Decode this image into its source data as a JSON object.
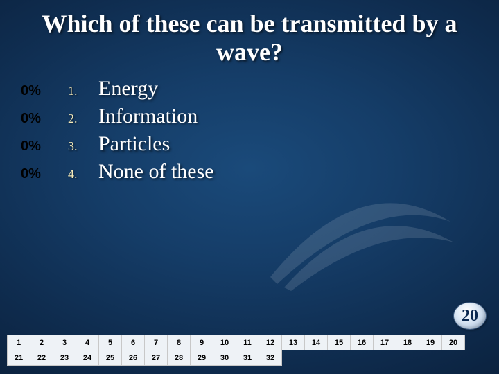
{
  "title": "Which of these can be transmitted by a wave?",
  "options": [
    {
      "pct": "0%",
      "num": "1.",
      "text": "Energy"
    },
    {
      "pct": "0%",
      "num": "2.",
      "text": "Information"
    },
    {
      "pct": "0%",
      "num": "3.",
      "text": "Particles"
    },
    {
      "pct": "0%",
      "num": "4.",
      "text": "None of these"
    }
  ],
  "countdown": "20",
  "grid": {
    "cols": 20,
    "rows": [
      [
        "1",
        "2",
        "3",
        "4",
        "5",
        "6",
        "7",
        "8",
        "9",
        "10",
        "11",
        "12",
        "13",
        "14",
        "15",
        "16",
        "17",
        "18",
        "19",
        "20"
      ],
      [
        "21",
        "22",
        "23",
        "24",
        "25",
        "26",
        "27",
        "28",
        "29",
        "30",
        "31",
        "32",
        "",
        "",
        "",
        "",
        "",
        "",
        "",
        ""
      ]
    ]
  },
  "style": {
    "title_fontsize": 36,
    "answer_fontsize": 30,
    "pct_color": "#000000",
    "num_color": "#f4e9b8",
    "text_color": "#ffffff",
    "countdown_text_color": "#0a2850",
    "grid_border_color": "#c8c8c8",
    "grid_cell_bg": "#eef2f6",
    "grid_text_color": "#000000",
    "background_gradient": [
      "#1a4a7a",
      "#153d68",
      "#0f2d50",
      "#0a1f3a",
      "#061428"
    ]
  }
}
